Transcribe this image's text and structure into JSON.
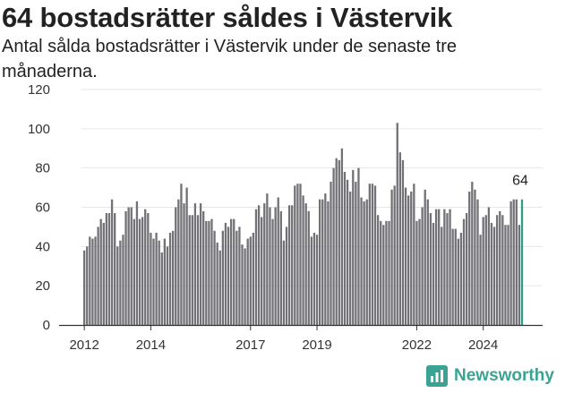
{
  "header": {
    "title": "64 bostadsrätter såldes i Västervik",
    "subtitle": "Antal sålda bostadsrätter i Västervik under de senaste tre månaderna."
  },
  "logo": {
    "text": "Newsworthy",
    "icon": "newsworthy-logo-icon",
    "color": "#3aa394"
  },
  "colors": {
    "bar": "#727176",
    "highlight": "#2a9d8f",
    "axis": "#333333",
    "grid": "#e6e6e6"
  },
  "chart_data": {
    "type": "bar",
    "title": "64 bostadsrätter såldes i Västervik",
    "subtitle": "Antal sålda bostadsrätter i Västervik under de senaste tre månaderna.",
    "xlabel": "",
    "ylabel": "",
    "ylim": [
      0,
      120
    ],
    "yticks": [
      0,
      20,
      40,
      60,
      80,
      100,
      120
    ],
    "xticks": [
      {
        "label": "2012",
        "index": 0
      },
      {
        "label": "2014",
        "index": 24
      },
      {
        "label": "2017",
        "index": 60
      },
      {
        "label": "2019",
        "index": 84
      },
      {
        "label": "2022",
        "index": 120
      },
      {
        "label": "2024",
        "index": 144
      }
    ],
    "grid": true,
    "annotation": {
      "text": "64",
      "index": 158
    },
    "highlight_index": 158,
    "categories_start": "2011-12",
    "categories_frequency": "monthly",
    "values": [
      38,
      40,
      45,
      44,
      45,
      50,
      54,
      52,
      57,
      57,
      64,
      57,
      40,
      43,
      46,
      58,
      60,
      60,
      54,
      63,
      54,
      55,
      59,
      57,
      47,
      44,
      47,
      43,
      37,
      44,
      40,
      47,
      48,
      60,
      64,
      72,
      62,
      70,
      56,
      56,
      62,
      56,
      62,
      58,
      53,
      53,
      54,
      48,
      42,
      38,
      48,
      52,
      50,
      54,
      54,
      48,
      50,
      41,
      39,
      44,
      45,
      47,
      59,
      61,
      55,
      62,
      67,
      60,
      54,
      60,
      65,
      58,
      43,
      50,
      61,
      61,
      71,
      72,
      72,
      66,
      62,
      58,
      45,
      47,
      46,
      64,
      64,
      67,
      63,
      73,
      80,
      85,
      84,
      90,
      78,
      74,
      68,
      79,
      73,
      80,
      65,
      63,
      64,
      72,
      72,
      71,
      56,
      53,
      51,
      53,
      53,
      69,
      71,
      103,
      88,
      84,
      70,
      66,
      68,
      72,
      53,
      54,
      60,
      69,
      64,
      57,
      52,
      59,
      59,
      50,
      59,
      57,
      59,
      49,
      49,
      44,
      47,
      54,
      57,
      68,
      73,
      69,
      64,
      46,
      55,
      56,
      60,
      52,
      50,
      56,
      58,
      56,
      51,
      51,
      63,
      64,
      64,
      51,
      64
    ],
    "series": [
      {
        "values_ref": "values"
      }
    ]
  }
}
